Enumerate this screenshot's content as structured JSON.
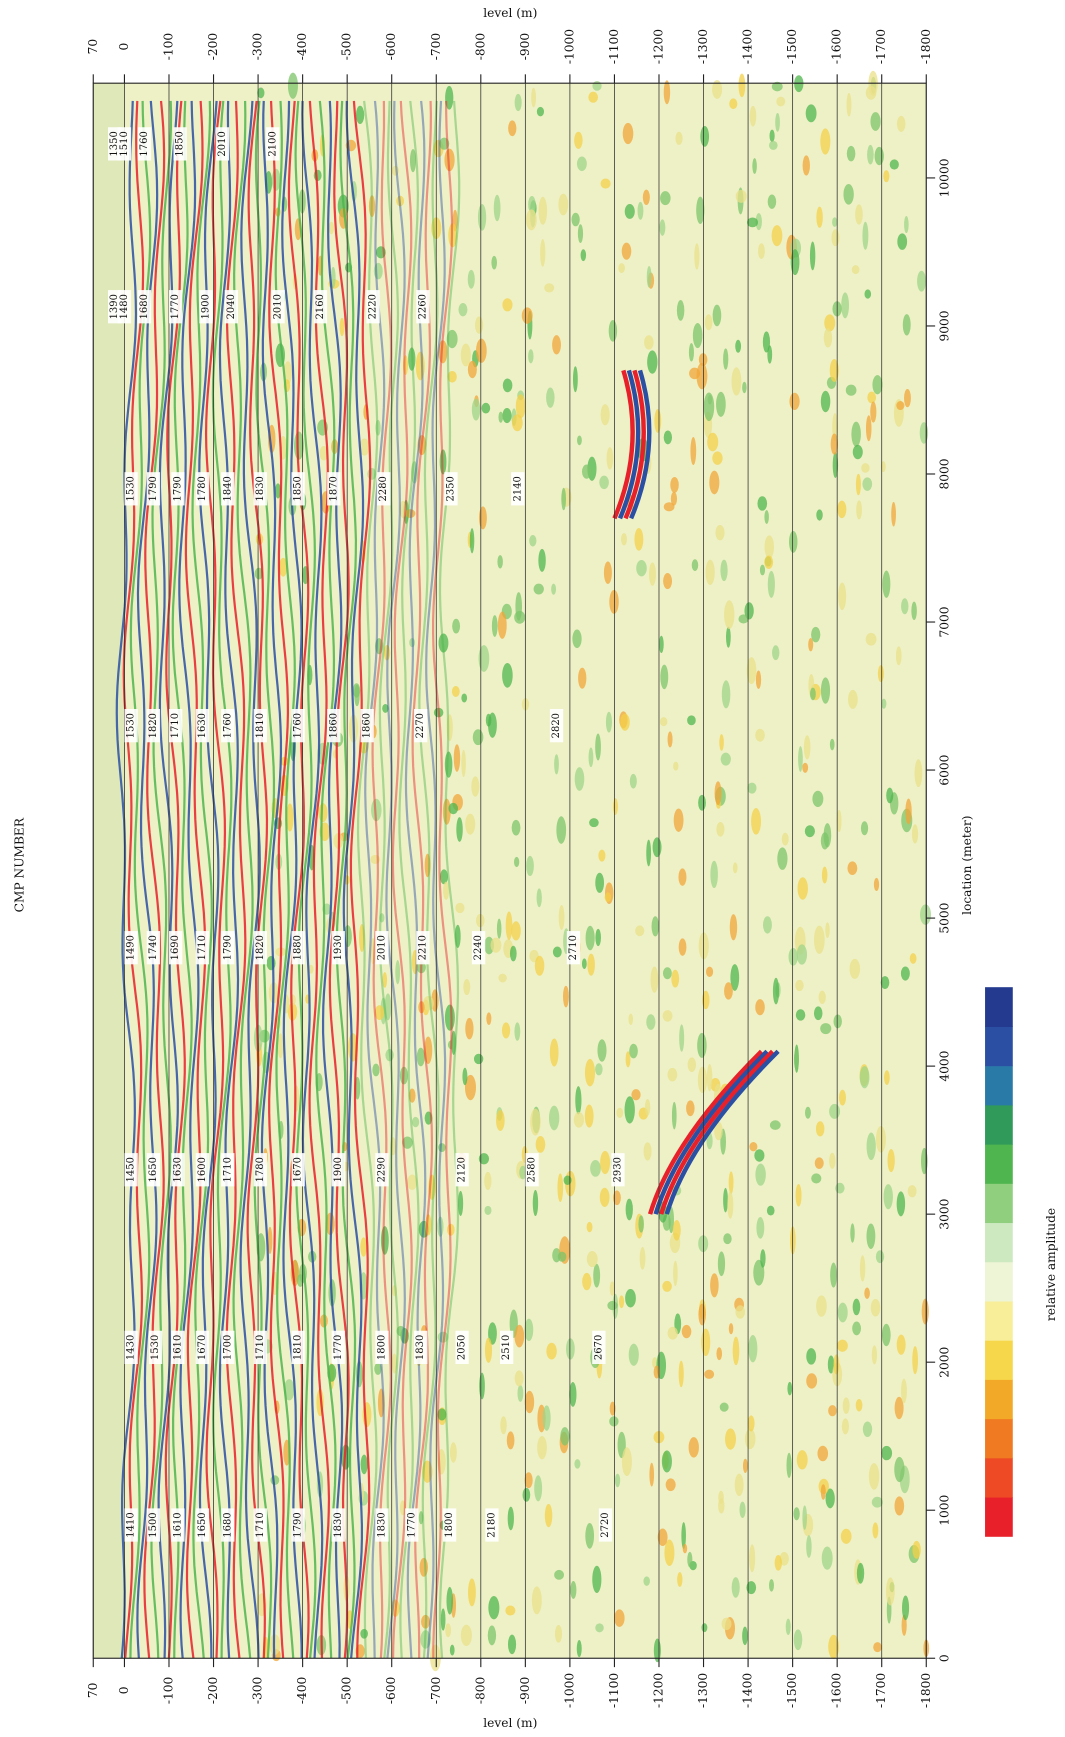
{
  "chart_data": {
    "type": "seismic-section",
    "top_label": "CMP NUMBER",
    "xlabel": "level (m)",
    "ylabel": "location (meter)",
    "colorbar_label": "relative amplitude",
    "xlim": [
      70,
      -1800
    ],
    "xticks": [
      70,
      0,
      -100,
      -200,
      -300,
      -400,
      -500,
      -600,
      -700,
      -800,
      -900,
      -1000,
      -1100,
      -1200,
      -1300,
      -1400,
      -1500,
      -1600,
      -1700,
      -1800
    ],
    "ylim": [
      0,
      10640
    ],
    "yticks": [
      0,
      1000,
      2000,
      3000,
      4000,
      5000,
      6000,
      7000,
      8000,
      9000,
      10000
    ],
    "grid": true,
    "colorbar_colors": [
      "#e8202a",
      "#ee4a26",
      "#f07a22",
      "#f3a928",
      "#f6d64a",
      "#f8ee9a",
      "#eef4d6",
      "#cde9c0",
      "#8fcf7e",
      "#4fb54e",
      "#2f9a5a",
      "#2a7aa8",
      "#2a4fa3",
      "#243a8f"
    ],
    "velocity_columns": [
      {
        "location": 900,
        "levels": [
          -15,
          -65,
          -120,
          -175,
          -232,
          -305,
          -390,
          -480,
          -578,
          -645,
          -730,
          -825,
          -1080
        ],
        "labels": [
          "1410",
          "1500",
          "1610",
          "1650",
          "1680",
          "1710",
          "1790",
          "1830",
          "1830",
          "1770",
          "1800",
          "2180",
          "2720"
        ]
      },
      {
        "location": 2100,
        "levels": [
          -15,
          -70,
          -120,
          -175,
          -232,
          -305,
          -390,
          -480,
          -578,
          -665,
          -758,
          -858,
          -1065
        ],
        "labels": [
          "1430",
          "1530",
          "1610",
          "1670",
          "1700",
          "1710",
          "1810",
          "1770",
          "1800",
          "1830",
          "2050",
          "2510",
          "2670"
        ]
      },
      {
        "location": 3300,
        "levels": [
          -15,
          -65,
          -120,
          -175,
          -232,
          -305,
          -390,
          -480,
          -578,
          -758,
          -915,
          -1108
        ],
        "labels": [
          "1450",
          "1650",
          "1630",
          "1600",
          "1710",
          "1780",
          "1670",
          "1900",
          "2290",
          "2120",
          "2580",
          "2930"
        ]
      },
      {
        "location": 4800,
        "levels": [
          -15,
          -65,
          -115,
          -175,
          -232,
          -305,
          -390,
          -480,
          -578,
          -670,
          -795,
          -1008
        ],
        "labels": [
          "1490",
          "1740",
          "1690",
          "1710",
          "1790",
          "1820",
          "1880",
          "1930",
          "2010",
          "2210",
          "2240",
          "2710"
        ]
      },
      {
        "location": 6300,
        "levels": [
          -15,
          -65,
          -115,
          -175,
          -232,
          -305,
          -390,
          -470,
          -545,
          -665,
          -970
        ],
        "labels": [
          "1530",
          "1820",
          "1710",
          "1630",
          "1760",
          "1810",
          "1760",
          "1860",
          "1860",
          "2270",
          "2820"
        ]
      },
      {
        "location": 7900,
        "levels": [
          -15,
          -65,
          -120,
          -175,
          -232,
          -305,
          -390,
          -470,
          -582,
          -733,
          -883
        ],
        "labels": [
          "1530",
          "1790",
          "1790",
          "1780",
          "1840",
          "1830",
          "1850",
          "1870",
          "2280",
          "2350",
          "2140"
        ]
      },
      {
        "location": 9130,
        "levels": [
          22,
          0,
          -45,
          -115,
          -183,
          -240,
          -345,
          -440,
          -558,
          -670
        ],
        "labels": [
          "1390",
          "1480",
          "1680",
          "1770",
          "1900",
          "2040",
          "2010",
          "2160",
          "2220",
          "2260"
        ]
      },
      {
        "location": 10230,
        "levels": [
          22,
          0,
          -45,
          -125,
          -220,
          -333
        ],
        "labels": [
          "1350",
          "1510",
          "1760",
          "1850",
          "2010",
          "2100"
        ]
      }
    ]
  }
}
